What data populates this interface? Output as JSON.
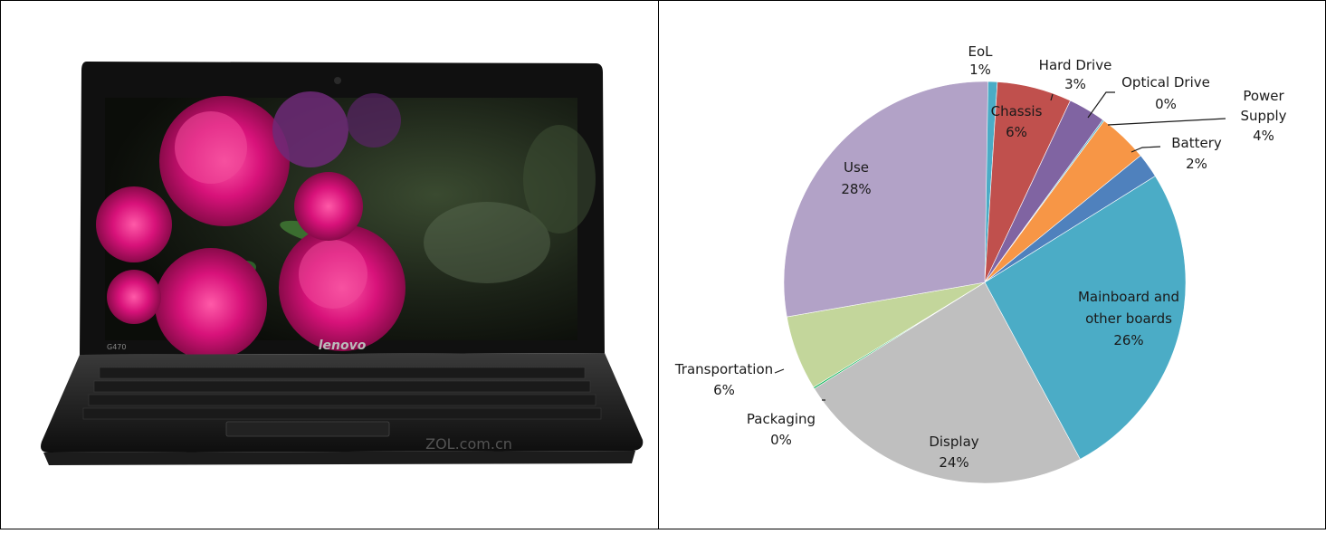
{
  "photo": {
    "screen_brand": "lenovo",
    "bezel_model": "G470",
    "watermark": "ZOL.com.cn"
  },
  "chart_data": {
    "type": "pie",
    "start_angle_deg": 0,
    "direction": "clockwise",
    "slices": [
      {
        "label": "EoL",
        "value": 1,
        "value_label": "1%",
        "color": "#4bacc6"
      },
      {
        "label": "Chassis",
        "value": 6,
        "value_label": "6%",
        "color": "#c0504d"
      },
      {
        "label": "Hard Drive",
        "value": 3,
        "value_label": "3%",
        "color": "#8064a2"
      },
      {
        "label": "Optical Drive",
        "value": 0,
        "value_label": "0%",
        "color": "#4bacc6"
      },
      {
        "label": "Power Supply",
        "value": 4,
        "value_label": "4%",
        "color": "#f79646"
      },
      {
        "label": "Battery",
        "value": 2,
        "value_label": "2%",
        "color": "#4f81bd"
      },
      {
        "label": "Mainboard and other boards",
        "value": 26,
        "value_label": "26%",
        "color": "#4bacc6"
      },
      {
        "label": "Display",
        "value": 24,
        "value_label": "24%",
        "color": "#bfbfbf"
      },
      {
        "label": "Packaging",
        "value": 0,
        "value_label": "0%",
        "color": "#00b050"
      },
      {
        "label": "Transportation",
        "value": 6,
        "value_label": "6%",
        "color": "#c3d69b"
      },
      {
        "label": "Use",
        "value": 28,
        "value_label": "28%",
        "color": "#b2a2c7"
      }
    ]
  }
}
